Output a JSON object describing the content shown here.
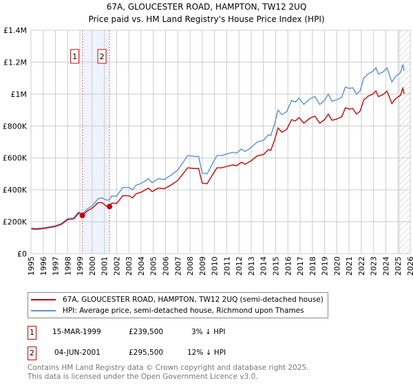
{
  "title": "67A, GLOUCESTER ROAD, HAMPTON, TW12 2UQ",
  "subtitle": "Price paid vs. HM Land Registry's House Price Index (HPI)",
  "chart_data": {
    "type": "line",
    "xlim": [
      1995,
      2026
    ],
    "ylim": [
      0,
      1400000
    ],
    "x_ticks": [
      "1995",
      "1996",
      "1997",
      "1998",
      "1999",
      "2000",
      "2001",
      "2002",
      "2003",
      "2004",
      "2005",
      "2006",
      "2007",
      "2008",
      "2009",
      "2010",
      "2011",
      "2012",
      "2013",
      "2014",
      "2015",
      "2016",
      "2017",
      "2018",
      "2019",
      "2020",
      "2021",
      "2022",
      "2023",
      "2024",
      "2025",
      "2026"
    ],
    "y_ticks": [
      {
        "v": 0,
        "label": "£0"
      },
      {
        "v": 200000,
        "label": "£200K"
      },
      {
        "v": 400000,
        "label": "£400K"
      },
      {
        "v": 600000,
        "label": "£600K"
      },
      {
        "v": 800000,
        "label": "£800K"
      },
      {
        "v": 1000000,
        "label": "£1M"
      },
      {
        "v": 1200000,
        "label": "£1.2M"
      },
      {
        "v": 1400000,
        "label": "£1.4M"
      }
    ],
    "grid": true,
    "shaded_period": [
      1999.2,
      2001.42
    ],
    "forecast_hatch_from": 2025.1,
    "x": [
      1995,
      1995.5,
      1996,
      1997,
      1997.5,
      1998,
      1998.5,
      1998.9,
      1999.2,
      1999.6,
      2000,
      2000.5,
      2000.8,
      2001.2,
      2001.4,
      2001.6,
      2002,
      2002.5,
      2003,
      2003.3,
      2003.6,
      2004,
      2004.6,
      2004.9,
      2005.4,
      2005.9,
      2006.5,
      2007,
      2007.5,
      2007.8,
      2008.3,
      2008.7,
      2009,
      2009.4,
      2009.8,
      2010.2,
      2010.6,
      2011,
      2011.5,
      2011.8,
      2012.2,
      2012.5,
      2013,
      2013.2,
      2013.5,
      2014,
      2014.4,
      2014.6,
      2014.9,
      2015.2,
      2015.5,
      2015.9,
      2016.3,
      2016.6,
      2016.9,
      2017.3,
      2017.8,
      2018.2,
      2018.6,
      2019,
      2019.3,
      2019.6,
      2020,
      2020.4,
      2020.7,
      2021,
      2021.3,
      2021.6,
      2021.9,
      2022.2,
      2022.6,
      2022.9,
      2023.2,
      2023.4,
      2023.8,
      2024.1,
      2024.5,
      2024.8,
      2025.2,
      2025.4,
      2025.5
    ],
    "series": [
      {
        "name": "67A, GLOUCESTER ROAD, HAMPTON, TW12 2UQ (semi-detached house)",
        "color": "#cc0000",
        "values": [
          155000,
          153000,
          157000,
          170000,
          184000,
          213000,
          218000,
          254000,
          240000,
          268000,
          285000,
          320000,
          320000,
          296000,
          296000,
          317000,
          315000,
          363000,
          363000,
          350000,
          376000,
          385000,
          411000,
          389000,
          411000,
          407000,
          433000,
          459000,
          508000,
          538000,
          534000,
          534000,
          442000,
          438000,
          490000,
          538000,
          538000,
          547000,
          556000,
          551000,
          573000,
          560000,
          582000,
          595000,
          613000,
          621000,
          652000,
          648000,
          709000,
          788000,
          761000,
          779000,
          840000,
          831000,
          853000,
          818000,
          849000,
          862000,
          818000,
          840000,
          875000,
          836000,
          844000,
          858000,
          914000,
          906000,
          910000,
          875000,
          893000,
          963000,
          989000,
          998000,
          1019000,
          984000,
          998000,
          1019000,
          941000,
          971000,
          993000,
          1037000,
          1002000
        ]
      },
      {
        "name": "HPI: Average price, semi-detached house, Richmond upon Thames",
        "color": "#5b8ed6",
        "values": [
          160000,
          158000,
          162000,
          175000,
          190000,
          220000,
          225000,
          262000,
          248000,
          280000,
          300000,
          345000,
          350000,
          335000,
          338000,
          362000,
          360000,
          415000,
          415000,
          400000,
          430000,
          440000,
          470000,
          445000,
          470000,
          465000,
          495000,
          525000,
          580000,
          615000,
          610000,
          610000,
          505000,
          500000,
          560000,
          615000,
          615000,
          625000,
          635000,
          630000,
          655000,
          640000,
          665000,
          680000,
          700000,
          710000,
          745000,
          740000,
          810000,
          900000,
          870000,
          890000,
          960000,
          950000,
          975000,
          935000,
          970000,
          985000,
          935000,
          960000,
          1000000,
          955000,
          965000,
          980000,
          1045000,
          1035000,
          1040000,
          1000000,
          1020000,
          1100000,
          1130000,
          1140000,
          1165000,
          1125000,
          1140000,
          1165000,
          1075000,
          1110000,
          1135000,
          1185000,
          1145000
        ]
      }
    ],
    "sales": [
      {
        "id": "1",
        "x": 1999.2,
        "price": 239500,
        "date": "15-MAR-1999",
        "price_label": "£239,500",
        "hpi_diff": "3% ↓ HPI"
      },
      {
        "id": "2",
        "x": 2001.42,
        "price": 295500,
        "date": "04-JUN-2001",
        "price_label": "£295,500",
        "hpi_diff": "12% ↓ HPI"
      }
    ]
  },
  "footer": {
    "line1": "Contains HM Land Registry data © Crown copyright and database right 2025.",
    "line2": "This data is licensed under the Open Government Licence v3.0."
  }
}
